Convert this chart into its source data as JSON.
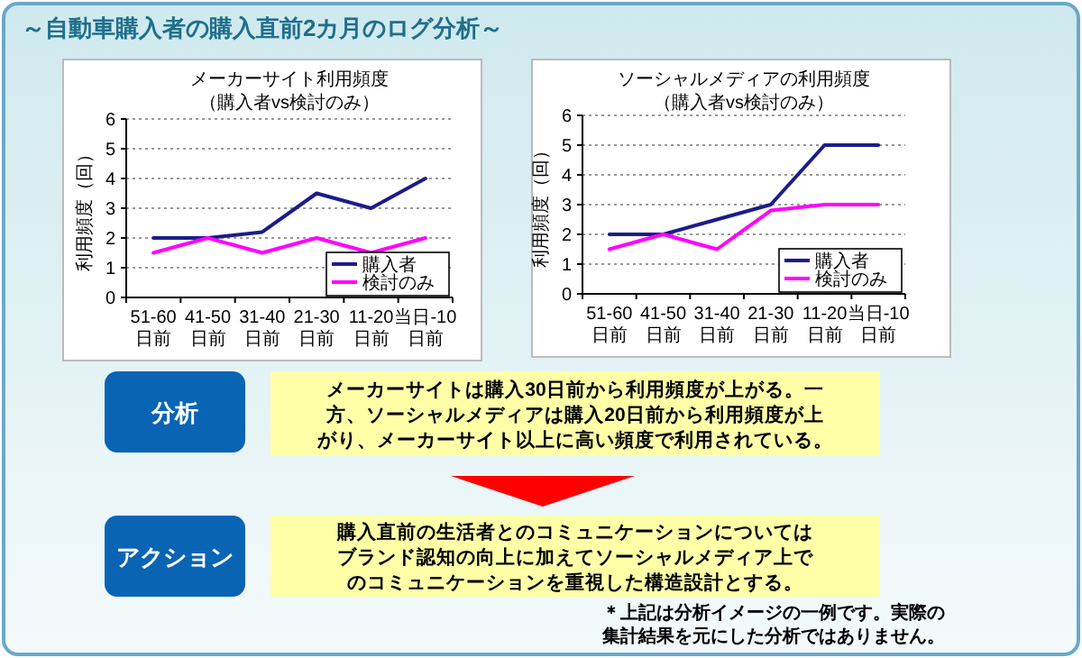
{
  "chart_data": [
    {
      "type": "line",
      "title": "メーカーサイト利用頻度",
      "subtitle": "（購入者vs検討のみ）",
      "ylabel": "利用頻度（回）",
      "categories": [
        "51-60\n日前",
        "41-50\n日前",
        "31-40\n日前",
        "21-30\n日前",
        "11-20\n日前",
        "当日-10\n日前"
      ],
      "series": [
        {
          "name": "購入者",
          "color": "#1c1c8c",
          "values": [
            2,
            2,
            2.2,
            3.5,
            3,
            4
          ]
        },
        {
          "name": "検討のみ",
          "color": "#ff00ff",
          "values": [
            1.5,
            2,
            1.5,
            2,
            1.5,
            2
          ]
        }
      ],
      "ylim": [
        0,
        6
      ],
      "yticks": [
        0,
        1,
        2,
        3,
        4,
        5,
        6
      ],
      "grid": "y",
      "legend": "bottom right"
    },
    {
      "type": "line",
      "title": "ソーシャルメディアの利用頻度",
      "subtitle": "（購入者vs検討のみ）",
      "ylabel": "利用頻度（回）",
      "categories": [
        "51-60\n日前",
        "41-50\n日前",
        "31-40\n日前",
        "21-30\n日前",
        "11-20\n日前",
        "当日-10\n日前"
      ],
      "series": [
        {
          "name": "購入者",
          "color": "#1c1c8c",
          "values": [
            2,
            2,
            2.5,
            3,
            5,
            5
          ]
        },
        {
          "name": "検討のみ",
          "color": "#ff00ff",
          "values": [
            1.5,
            2,
            1.5,
            2.8,
            3,
            3
          ]
        }
      ],
      "ylim": [
        0,
        6
      ],
      "yticks": [
        0,
        1,
        2,
        3,
        4,
        5,
        6
      ],
      "grid": "y",
      "legend": "bottom right"
    },
    {
      "type": "other",
      "title": "～自動車購入者の購入直前2カ月のログ分析～",
      "annotations": [
        "分析",
        "メーカーサイトは購入30日前から利用頻度が上がる。一方、ソーシャルメディアは購入20日前から利用頻度が上がり、メーカーサイト以上に高い頻度で利用されている。",
        "アクション",
        "購入直前の生活者とのコミュニケーションについてはブランド認知の向上に加えてソーシャルメディア上でのコミュニケーションを重視した構造設計とする。",
        "＊上記は分析イメージの一例です。実際の集計結果を元にした分析ではありません。"
      ]
    }
  ]
}
